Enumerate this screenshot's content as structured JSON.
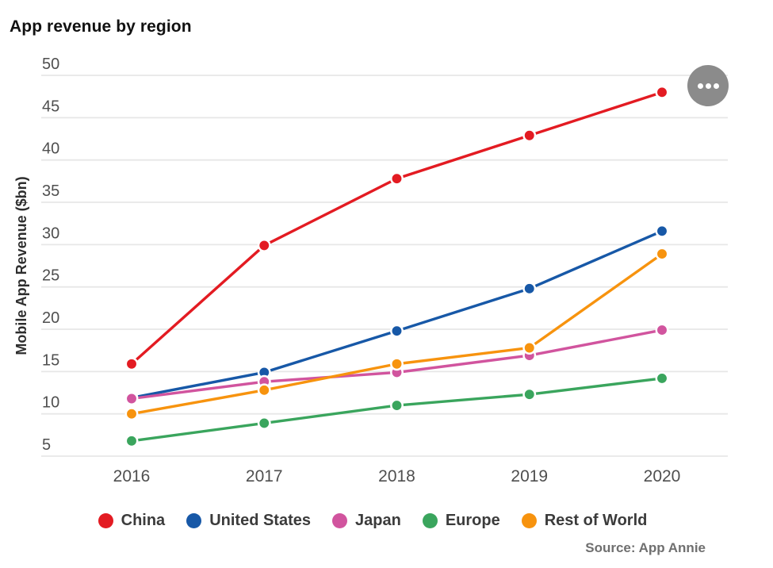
{
  "header": {
    "title": "App revenue by region"
  },
  "footer": {
    "source": "Source: App Annie"
  },
  "menu_button": {
    "icon": "ellipsis-icon"
  },
  "colors": {
    "china": "#e31b22",
    "united_states": "#1758a7",
    "japan": "#d1549e",
    "europe": "#3aa55d",
    "rest_of_world": "#f7930e",
    "gridline": "#e7e7e7",
    "tick_label": "#4f4f4f",
    "menu_button_bg": "#8b8b8b"
  },
  "chart_data": {
    "type": "line",
    "title": "App revenue by region",
    "categories": [
      "2016",
      "2017",
      "2018",
      "2019",
      "2020"
    ],
    "series": [
      {
        "name": "China",
        "color": "#e31b22",
        "values": [
          15.9,
          29.9,
          37.8,
          42.9,
          48.0
        ]
      },
      {
        "name": "United States",
        "color": "#1758a7",
        "values": [
          11.9,
          14.9,
          19.8,
          24.8,
          31.6
        ]
      },
      {
        "name": "Japan",
        "color": "#d1549e",
        "values": [
          11.8,
          13.8,
          14.9,
          16.9,
          19.9
        ]
      },
      {
        "name": "Europe",
        "color": "#3aa55d",
        "values": [
          6.8,
          8.9,
          11.0,
          12.3,
          14.2
        ]
      },
      {
        "name": "Rest of World",
        "color": "#f7930e",
        "values": [
          10.0,
          12.8,
          15.9,
          17.8,
          28.9
        ]
      }
    ],
    "xlabel": "",
    "ylabel": "Mobile App Revenue ($bn)",
    "ylim": [
      5,
      50
    ],
    "yticks": [
      5,
      10,
      15,
      20,
      25,
      30,
      35,
      40,
      45,
      50
    ],
    "grid": true,
    "legend_position": "bottom",
    "source": "Source: App Annie"
  }
}
